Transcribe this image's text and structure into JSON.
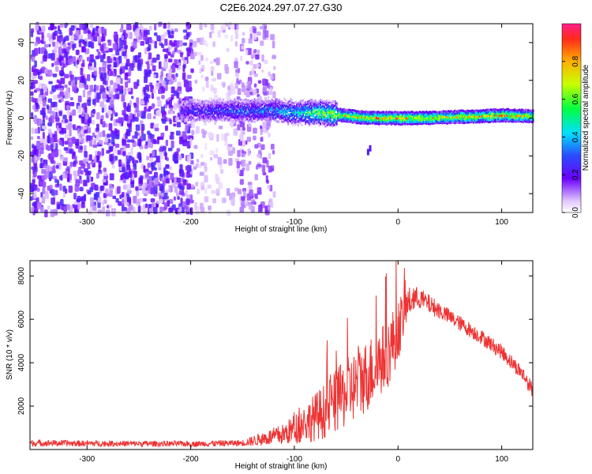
{
  "title": "C2E6.2024.297.07.27.G30",
  "chart_data": [
    {
      "type": "heatmap",
      "name": "spectrogram",
      "xlabel": "Height of straight line (km)",
      "ylabel": "Frequency (Hz)",
      "xlim": [
        -355,
        130
      ],
      "ylim": [
        -50,
        50
      ],
      "xticks": [
        -300,
        -200,
        -100,
        0,
        100
      ],
      "yticks": [
        -40,
        -20,
        0,
        20,
        40
      ],
      "colorbar": {
        "label": "Normalized spectral amplitude",
        "range": [
          0.0,
          1.0
        ],
        "ticks": [
          "0.0",
          "0.2",
          "0.4",
          "0.6",
          "0.8"
        ],
        "tick_values": [
          0.0,
          0.2,
          0.4,
          0.6,
          0.8
        ]
      },
      "ridge": {
        "x": [
          -205,
          -180,
          -150,
          -120,
          -100,
          -80,
          -60,
          -40,
          -20,
          0,
          20,
          50,
          80,
          100,
          130
        ],
        "frequency": [
          4,
          4,
          4,
          4,
          3,
          3,
          2,
          0.5,
          0,
          0,
          0,
          0.5,
          1,
          1.5,
          1
        ],
        "amplitude": [
          0.3,
          0.35,
          0.4,
          0.45,
          0.55,
          0.7,
          0.85,
          0.9,
          0.95,
          0.95,
          0.9,
          0.85,
          0.9,
          0.95,
          0.85
        ]
      }
    },
    {
      "type": "line",
      "name": "snr",
      "xlabel": "Height of straight line (km)",
      "ylabel": "SNR (10 * v/v)",
      "xlim": [
        -355,
        130
      ],
      "ylim": [
        0,
        8700
      ],
      "xticks": [
        -300,
        -200,
        -100,
        0,
        100
      ],
      "yticks": [
        2000,
        4000,
        6000,
        8000
      ],
      "color": "#ee3333",
      "envelope": {
        "x": [
          -355,
          -300,
          -200,
          -150,
          -110,
          -90,
          -70,
          -50,
          -30,
          -10,
          0,
          10,
          20,
          40,
          60,
          80,
          100,
          120,
          130
        ],
        "mean": [
          300,
          280,
          260,
          300,
          700,
          1200,
          1800,
          2600,
          3400,
          4400,
          5500,
          6800,
          7000,
          6400,
          5800,
          5200,
          4500,
          3500,
          2700
        ],
        "spread": [
          150,
          140,
          130,
          150,
          500,
          900,
          1300,
          1600,
          1700,
          1600,
          1500,
          700,
          500,
          400,
          350,
          350,
          350,
          350,
          350
        ]
      }
    }
  ]
}
